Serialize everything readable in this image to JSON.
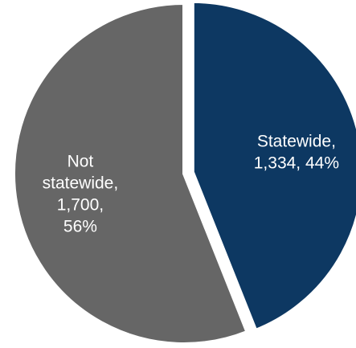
{
  "chart_data": {
    "type": "pie",
    "title": "",
    "slices": [
      {
        "category": "Statewide",
        "value": 1334,
        "percent": 44,
        "color": "#0d3862",
        "exploded": true,
        "label_lines": [
          "Statewide,",
          "1,334, 44%"
        ]
      },
      {
        "category": "Not statewide",
        "value": 1700,
        "percent": 56,
        "color": "#666666",
        "exploded": false,
        "label_lines": [
          "Not",
          "statewide,",
          "1,700,",
          "56%"
        ]
      }
    ],
    "start_angle_deg_clockwise_from_top": 0,
    "direction": "clockwise",
    "legend": "none",
    "data_labels": "inside"
  }
}
